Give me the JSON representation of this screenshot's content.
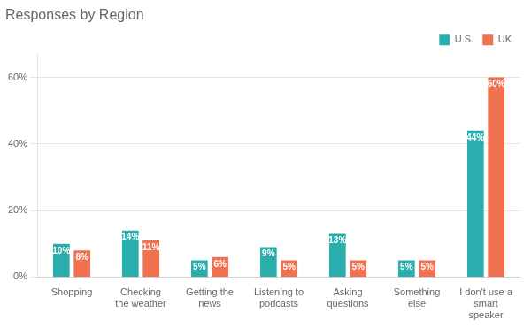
{
  "chart_data": {
    "type": "bar",
    "title": "Responses by Region",
    "categories": [
      "Shopping",
      "Checking\nthe weather",
      "Getting the\nnews",
      "Listening to\npodcasts",
      "Asking\nquestions",
      "Something\nelse",
      "I don't use a\nsmart\nspeaker"
    ],
    "series": [
      {
        "name": "U.S.",
        "color": "#2AADAD",
        "values": [
          10,
          14,
          5,
          9,
          13,
          5,
          44
        ],
        "value_labels": [
          "10%",
          "14%",
          "5%",
          "9%",
          "13%",
          "5%",
          "44%"
        ]
      },
      {
        "name": "UK",
        "color": "#F07150",
        "values": [
          8,
          11,
          6,
          5,
          5,
          5,
          60
        ],
        "value_labels": [
          "8%",
          "11%",
          "6%",
          "5%",
          "5%",
          "5%",
          "60%"
        ]
      }
    ],
    "ylim": [
      0,
      67
    ],
    "yticks": [
      {
        "value": 0,
        "label": "0%"
      },
      {
        "value": 20,
        "label": "20%"
      },
      {
        "value": 40,
        "label": "40%"
      },
      {
        "value": 60,
        "label": "60%"
      }
    ],
    "grid": true,
    "legend": "upper right",
    "data_labels": true
  }
}
